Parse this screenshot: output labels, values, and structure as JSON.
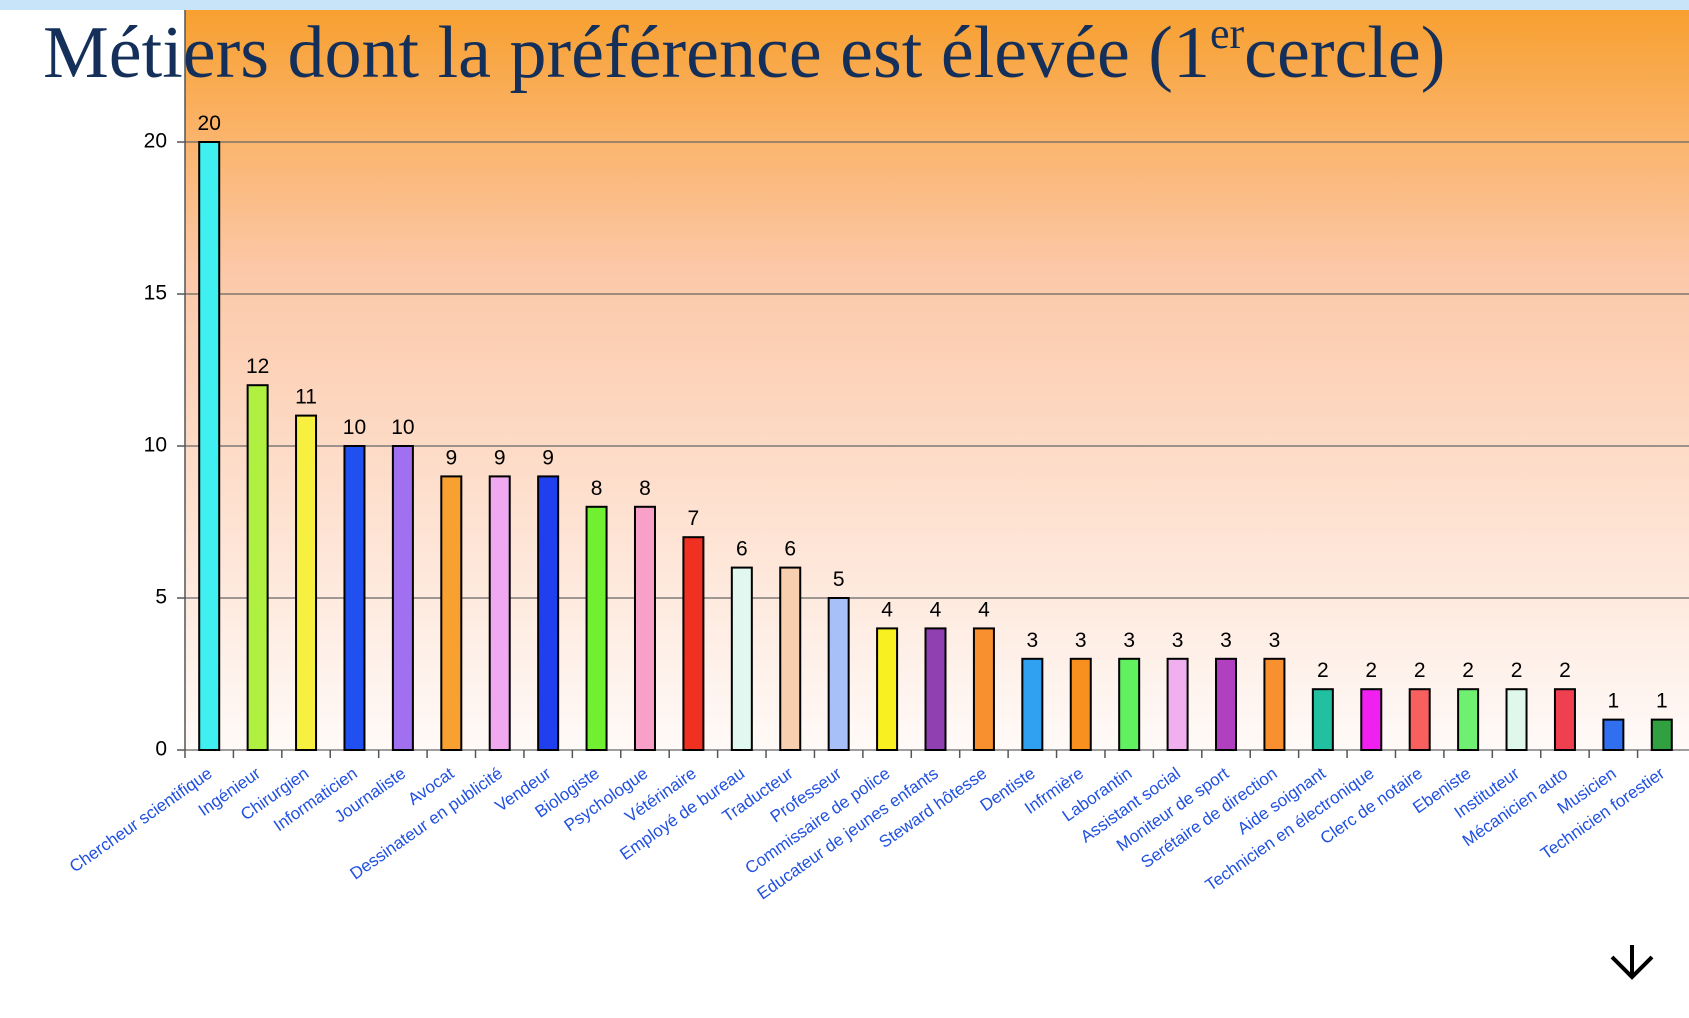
{
  "chart_data": {
    "type": "bar",
    "title": [
      "Métiers dont la préférence est élevée (1",
      "er",
      "cercle)"
    ],
    "categories": [
      "Chercheur scientifique",
      "Ingénieur",
      "Chirurgien",
      "Informaticien",
      "Journaliste",
      "Avocat",
      "Dessinateur en publicité",
      "Vendeur",
      "Biologiste",
      "Psychologue",
      "Vétérinaire",
      "Employé de bureau",
      "Traducteur",
      "Professeur",
      "Commissaire de police",
      "Educateur de jeunes enfants",
      "Steward hôtesse",
      "Dentiste",
      "Infrmière",
      "Laborantin",
      "Assistant social",
      "Moniteur de sport",
      "Serétaire de direction",
      "Aide soignant",
      "Technicien en électronique",
      "Clerc de notaire",
      "Ebeniste",
      "Instituteur",
      "Mécanicien auto",
      "Musicien",
      "Technicien forestier"
    ],
    "values": [
      20,
      12,
      11,
      10,
      10,
      9,
      9,
      9,
      8,
      8,
      7,
      6,
      6,
      5,
      4,
      4,
      4,
      3,
      3,
      3,
      3,
      3,
      3,
      2,
      2,
      2,
      2,
      2,
      2,
      1,
      1
    ],
    "colors": [
      "#40f0f0",
      "#b0f040",
      "#f8f040",
      "#2050f0",
      "#a070f0",
      "#f8a030",
      "#f0a8f0",
      "#2040f0",
      "#70f030",
      "#f8a0c8",
      "#f03020",
      "#e0f8f0",
      "#f8d0b0",
      "#a8c0f8",
      "#f8f020",
      "#9040b0",
      "#f89030",
      "#30a0f0",
      "#f89020",
      "#60f060",
      "#f0b0f0",
      "#b040c0",
      "#f89030",
      "#20c0a0",
      "#f020f0",
      "#f86060",
      "#70f070",
      "#e0f8ec",
      "#f04050",
      "#3070f0",
      "#30a040"
    ],
    "ylim": [
      0,
      20
    ],
    "yticks": [
      0,
      5,
      10,
      15,
      20
    ],
    "grid": true
  }
}
